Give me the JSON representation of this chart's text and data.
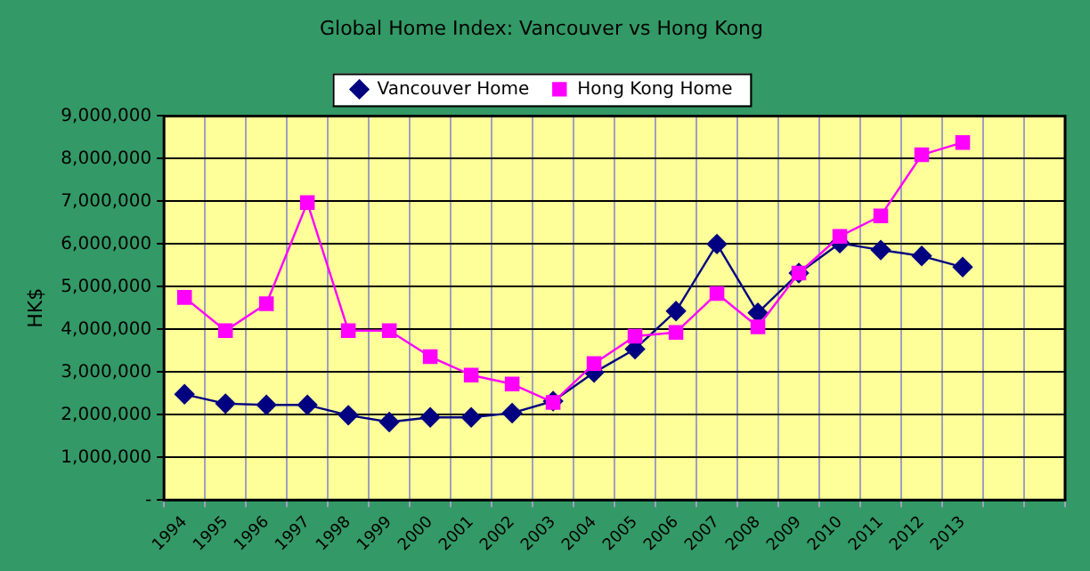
{
  "chart_data": {
    "type": "line",
    "title": "Global Home Index: Vancouver vs Hong Kong",
    "ylabel": "HK$",
    "categories": [
      "1994",
      "1995",
      "1996",
      "1997",
      "1998",
      "1999",
      "2000",
      "2001",
      "2002",
      "2003",
      "2004",
      "2005",
      "2006",
      "2007",
      "2008",
      "2009",
      "2010",
      "2011",
      "2012",
      "2013",
      null,
      null
    ],
    "series": [
      {
        "name": "Vancouver Home",
        "color": "#000080",
        "marker": "diamond",
        "values": [
          2480000,
          2260000,
          2230000,
          2230000,
          1990000,
          1830000,
          1940000,
          1940000,
          2040000,
          2320000,
          2990000,
          3540000,
          4430000,
          6000000,
          4390000,
          5320000,
          6020000,
          5860000,
          5720000,
          5460000,
          null,
          null
        ]
      },
      {
        "name": "Hong Kong Home",
        "color": "#ff00ff",
        "marker": "square",
        "values": [
          4750000,
          3970000,
          4600000,
          6970000,
          3970000,
          3970000,
          3360000,
          2930000,
          2720000,
          2290000,
          3200000,
          3840000,
          3930000,
          4840000,
          4060000,
          5320000,
          6180000,
          6660000,
          8090000,
          8380000,
          null,
          null
        ]
      }
    ],
    "ylim": [
      0,
      9000000
    ],
    "yticks": [
      {
        "value": 0,
        "label": "-"
      },
      {
        "value": 1000000,
        "label": "1,000,000"
      },
      {
        "value": 2000000,
        "label": "2,000,000"
      },
      {
        "value": 3000000,
        "label": "3,000,000"
      },
      {
        "value": 4000000,
        "label": "4,000,000"
      },
      {
        "value": 5000000,
        "label": "5,000,000"
      },
      {
        "value": 6000000,
        "label": "6,000,000"
      },
      {
        "value": 7000000,
        "label": "7,000,000"
      },
      {
        "value": 8000000,
        "label": "8,000,000"
      },
      {
        "value": 9000000,
        "label": "9,000,000"
      }
    ],
    "grid": true,
    "legend": "top",
    "line_style": "solid"
  }
}
